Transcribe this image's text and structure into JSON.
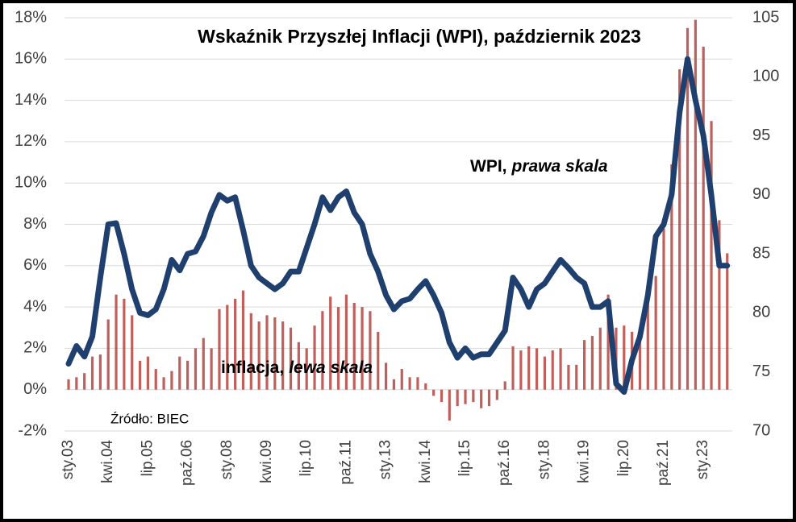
{
  "chart_data": {
    "type": "combo",
    "title": "Wskaźnik Przyszłej Inflacji (WPI), październik 2023",
    "source": "Źródło: BIEC",
    "annotations": [
      {
        "text": "WPI,",
        "italic": "prawa skala"
      },
      {
        "text": "inflacja,",
        "italic": "lewa skala"
      }
    ],
    "categories": [
      "sty.03",
      null,
      null,
      null,
      null,
      "kwi.04",
      null,
      null,
      null,
      null,
      "lip.05",
      null,
      null,
      null,
      null,
      "paź.06",
      null,
      null,
      null,
      null,
      "sty.08",
      null,
      null,
      null,
      null,
      "kwi.09",
      null,
      null,
      null,
      null,
      "lip.10",
      null,
      null,
      null,
      null,
      "paź.11",
      null,
      null,
      null,
      null,
      "sty.13",
      null,
      null,
      null,
      null,
      "kwi.14",
      null,
      null,
      null,
      null,
      "lip.15",
      null,
      null,
      null,
      null,
      "paź.16",
      null,
      null,
      null,
      null,
      "sty.18",
      null,
      null,
      null,
      null,
      "kwi.19",
      null,
      null,
      null,
      null,
      "lip.20",
      null,
      null,
      null,
      null,
      "paź.21",
      null,
      null,
      null,
      null,
      "sty.23",
      null,
      null,
      null
    ],
    "series": [
      {
        "type": "bar",
        "axis": "y",
        "color": "#b5443f",
        "values": [
          0.5,
          0.6,
          0.8,
          1.6,
          1.7,
          3.4,
          4.6,
          4.4,
          3.6,
          1.4,
          1.6,
          1.0,
          0.6,
          0.9,
          1.6,
          1.4,
          2.0,
          2.5,
          2.0,
          3.9,
          4.1,
          4.4,
          4.8,
          3.7,
          3.3,
          3.6,
          3.5,
          3.3,
          3.0,
          2.3,
          2.0,
          3.1,
          3.8,
          4.5,
          4.0,
          4.6,
          4.2,
          4.0,
          3.8,
          2.8,
          1.3,
          0.5,
          1.0,
          0.6,
          0.6,
          0.3,
          -0.3,
          -0.6,
          -1.5,
          -0.8,
          -0.7,
          -0.6,
          -0.9,
          -0.8,
          -0.5,
          0.4,
          2.1,
          1.9,
          2.1,
          2.0,
          1.6,
          1.9,
          2.0,
          1.2,
          1.2,
          2.4,
          2.6,
          3.0,
          4.6,
          3.0,
          3.1,
          2.8,
          3.0,
          4.6,
          5.5,
          7.8,
          10.9,
          15.5,
          17.5,
          17.9,
          16.6,
          13.0,
          8.2,
          6.6
        ]
      },
      {
        "type": "line",
        "axis": "y2",
        "color": "#1f3f6e",
        "values": [
          75.7,
          77.2,
          76.3,
          78,
          83,
          87.5,
          87.6,
          85,
          82,
          80,
          79.8,
          80.3,
          82,
          84.5,
          83.6,
          85,
          85.2,
          86.5,
          88.5,
          90,
          89.5,
          89.8,
          87,
          84,
          83,
          82.5,
          82,
          82.5,
          83.5,
          83.5,
          85.5,
          87.5,
          89.8,
          88.7,
          89.8,
          90.3,
          88.5,
          87.5,
          85,
          83.5,
          81.5,
          80.3,
          81,
          81.2,
          82,
          82.7,
          81.5,
          80,
          77.5,
          76.2,
          77,
          76.2,
          76.5,
          76.5,
          77.5,
          78.5,
          83,
          82,
          80.5,
          82,
          82.5,
          83.5,
          84.5,
          83.8,
          83,
          82.5,
          80.5,
          80.5,
          81,
          74,
          73.3,
          76,
          78,
          81.5,
          86.5,
          87.5,
          90,
          97,
          101.5,
          98,
          95,
          90,
          84,
          84
        ]
      }
    ],
    "ylim": [
      -2,
      18
    ],
    "yticks": [
      {
        "value": -2,
        "label": "-2%"
      },
      {
        "value": 0,
        "label": "0%"
      },
      {
        "value": 2,
        "label": "2%"
      },
      {
        "value": 4,
        "label": "4%"
      },
      {
        "value": 6,
        "label": "6%"
      },
      {
        "value": 8,
        "label": "8%"
      },
      {
        "value": 10,
        "label": "10%"
      },
      {
        "value": 12,
        "label": "12%"
      },
      {
        "value": 14,
        "label": "14%"
      },
      {
        "value": 16,
        "label": "16%"
      },
      {
        "value": 18,
        "label": "18%"
      }
    ],
    "y2lim": [
      70,
      105
    ],
    "y2ticks": [
      70,
      75,
      80,
      85,
      90,
      95,
      100,
      105
    ],
    "grid": true
  }
}
